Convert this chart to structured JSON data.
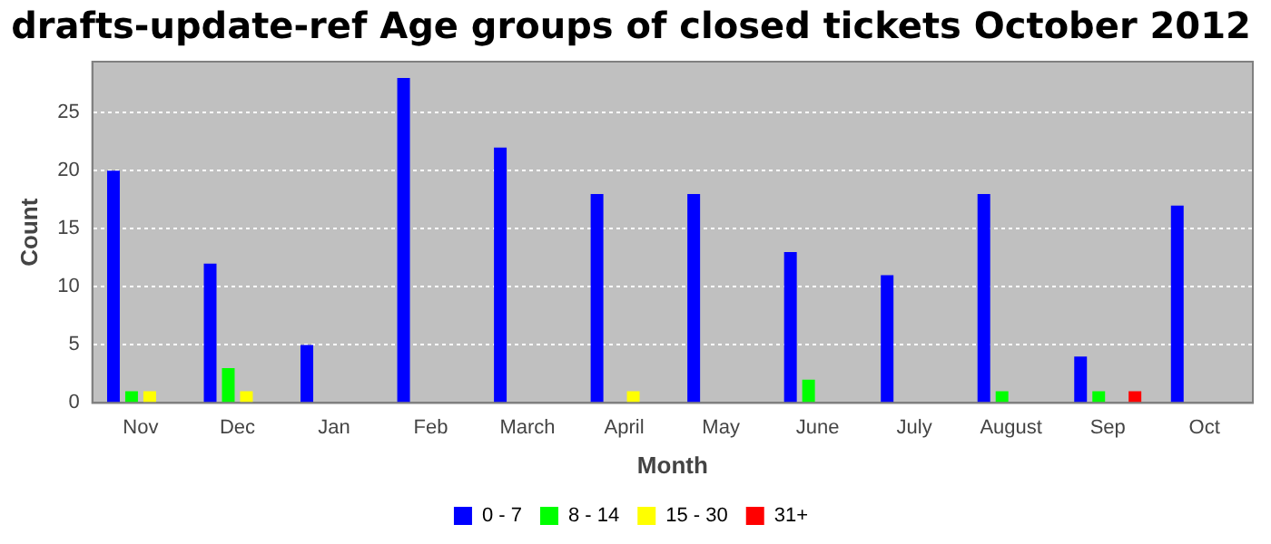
{
  "chart_data": {
    "type": "bar",
    "title": "drafts-update-ref Age groups of closed tickets October 2012",
    "xlabel": "Month",
    "ylabel": "Count",
    "categories": [
      "Nov",
      "Dec",
      "Jan",
      "Feb",
      "March",
      "April",
      "May",
      "June",
      "July",
      "August",
      "Sep",
      "Oct"
    ],
    "series": [
      {
        "name": "0 - 7",
        "color": "#0000ff",
        "values": [
          20,
          12,
          5,
          28,
          22,
          18,
          18,
          13,
          11,
          18,
          4,
          17
        ]
      },
      {
        "name": "8 - 14",
        "color": "#00ff00",
        "values": [
          1,
          3,
          0,
          0,
          0,
          0,
          0,
          2,
          0,
          1,
          1,
          0
        ]
      },
      {
        "name": "15 - 30",
        "color": "#ffff00",
        "values": [
          1,
          1,
          0,
          0,
          0,
          1,
          0,
          0,
          0,
          0,
          0,
          0
        ]
      },
      {
        "name": "31+",
        "color": "#ff0000",
        "values": [
          0,
          0,
          0,
          0,
          0,
          0,
          0,
          0,
          0,
          0,
          1,
          0
        ]
      }
    ],
    "ylim": [
      0,
      29.4
    ],
    "yticks": [
      0,
      5,
      10,
      15,
      20,
      25
    ],
    "grid": "y",
    "legend": "bottom"
  }
}
